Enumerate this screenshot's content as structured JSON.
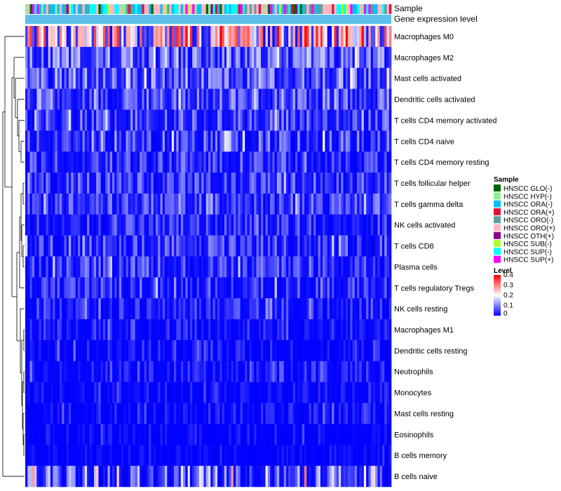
{
  "chart_data": {
    "type": "heatmap",
    "title": "",
    "column_count": 160,
    "annotation_labels": [
      "Sample",
      "Gene expression level"
    ],
    "rows": [
      {
        "label": "Macrophages M0",
        "mean": 0.26,
        "spread": 0.12
      },
      {
        "label": "Macrophages M2",
        "mean": 0.1,
        "spread": 0.06
      },
      {
        "label": "Mast cells activated",
        "mean": 0.09,
        "spread": 0.07
      },
      {
        "label": "Dendritic cells activated",
        "mean": 0.08,
        "spread": 0.07
      },
      {
        "label": "T cells CD4 memory activated",
        "mean": 0.06,
        "spread": 0.06
      },
      {
        "label": "T cells CD4 naive",
        "mean": 0.05,
        "spread": 0.08
      },
      {
        "label": "T cells CD4 memory resting",
        "mean": 0.05,
        "spread": 0.06
      },
      {
        "label": "T cells follicular helper",
        "mean": 0.06,
        "spread": 0.05
      },
      {
        "label": "T cells gamma delta",
        "mean": 0.06,
        "spread": 0.05
      },
      {
        "label": "NK cells activated",
        "mean": 0.04,
        "spread": 0.05
      },
      {
        "label": "T cells CD8",
        "mean": 0.05,
        "spread": 0.06
      },
      {
        "label": "Plasma cells",
        "mean": 0.05,
        "spread": 0.06
      },
      {
        "label": "T cells regulatory  Tregs",
        "mean": 0.04,
        "spread": 0.06
      },
      {
        "label": "NK cells resting",
        "mean": 0.03,
        "spread": 0.05
      },
      {
        "label": "Macrophages M1",
        "mean": 0.02,
        "spread": 0.04
      },
      {
        "label": "Dendritic cells resting",
        "mean": 0.01,
        "spread": 0.04
      },
      {
        "label": "Neutrophils",
        "mean": 0.02,
        "spread": 0.04
      },
      {
        "label": "Monocytes",
        "mean": 0.01,
        "spread": 0.03
      },
      {
        "label": "Mast cells resting",
        "mean": 0.01,
        "spread": 0.04
      },
      {
        "label": "Eosinophils",
        "mean": 0.005,
        "spread": 0.03
      },
      {
        "label": "B cells memory",
        "mean": 0.005,
        "spread": 0.02
      },
      {
        "label": "B cells naive",
        "mean": 0.07,
        "spread": 0.12
      }
    ],
    "sample_legend": {
      "title": "Sample",
      "items": [
        {
          "label": "HNSCC GLO(-)",
          "color": "#006400"
        },
        {
          "label": "HNSCC HYP(-)",
          "color": "#90EE90"
        },
        {
          "label": "HNSCC ORA(-)",
          "color": "#00BFFF"
        },
        {
          "label": "HNSCC ORA(+)",
          "color": "#DC143C"
        },
        {
          "label": "HNSCC ORO(-)",
          "color": "#5F9EA0"
        },
        {
          "label": "HNSCC ORO(+)",
          "color": "#FFB6C1"
        },
        {
          "label": "HNSCC OTH(+)",
          "color": "#8B008B"
        },
        {
          "label": "HNSCC SUB(-)",
          "color": "#ADFF2F"
        },
        {
          "label": "HNSCC SUP(-)",
          "color": "#00FFFF"
        },
        {
          "label": "HNSCC SUP(+)",
          "color": "#FF00FF"
        }
      ]
    },
    "level_legend": {
      "title": "Level",
      "ticks": [
        "0.4",
        "0.3",
        "0.2",
        "0.1",
        "0"
      ],
      "range": [
        0,
        0.4
      ],
      "colors": {
        "low": "#0000FF",
        "mid": "#FFFFFF",
        "high": "#FF0000"
      },
      "mid_value": 0.2
    },
    "expression_color": "#5BC0EB"
  }
}
